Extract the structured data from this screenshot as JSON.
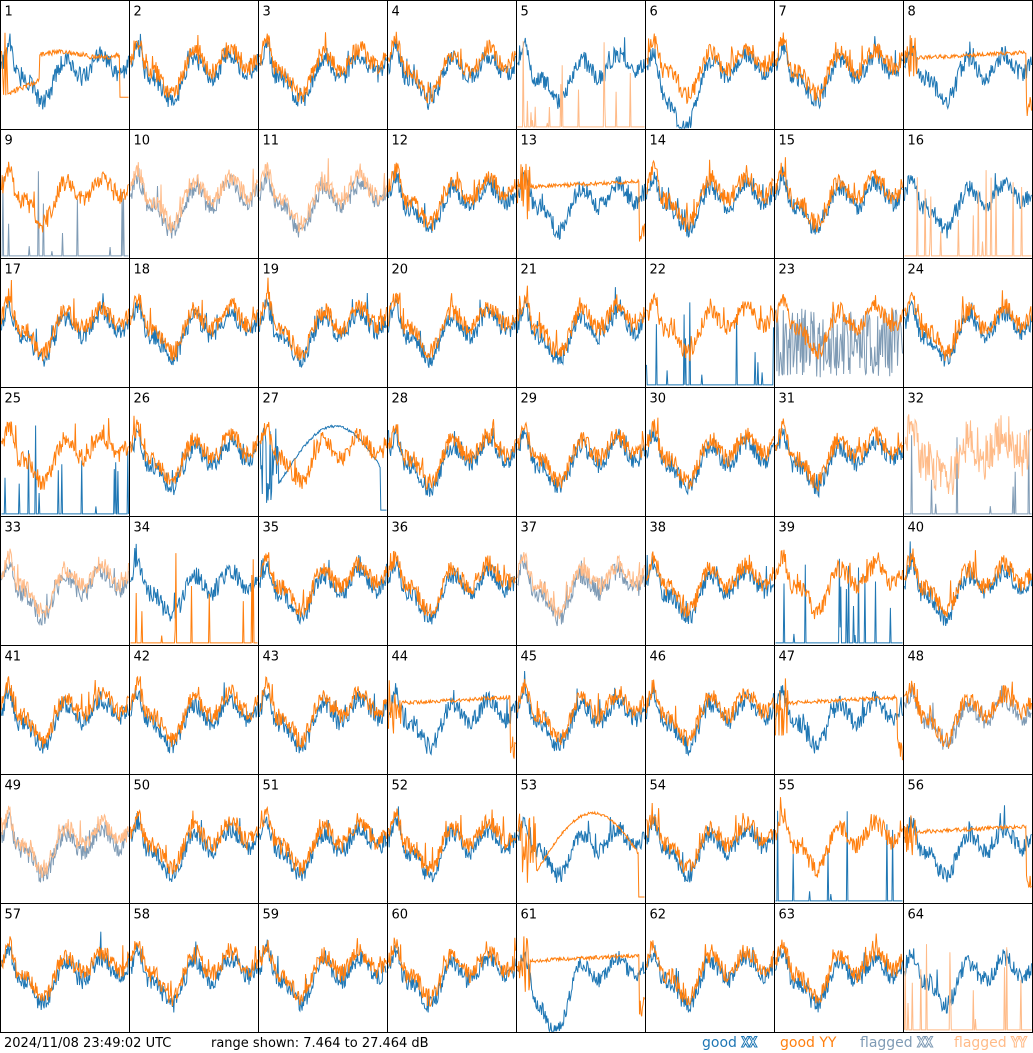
{
  "footer": {
    "timestamp": "2024/11/08 23:49:02 UTC",
    "range_text": "range shown: 7.464 to 27.464 dB",
    "legend": {
      "good_prefix": "good",
      "flagged_prefix": "flagged",
      "xx": "XX",
      "yy": "YY"
    }
  },
  "colors": {
    "good_xx": "#1f77b4",
    "good_yy": "#ff7f0e",
    "flagged_xx": "#7f9bb5",
    "flagged_yy": "#ffbb88",
    "frame": "#000000"
  },
  "chart_data": {
    "type": "line",
    "grid": {
      "rows": 8,
      "cols": 8
    },
    "ylim": [
      7.464,
      27.464
    ],
    "yunit": "dB",
    "panels": [
      {
        "label": "1",
        "xx": "good",
        "yy": "good",
        "xx_kind": "typical",
        "yy_kind": "sat_low"
      },
      {
        "label": "2",
        "xx": "good",
        "yy": "good",
        "xx_kind": "typical",
        "yy_kind": "typical"
      },
      {
        "label": "3",
        "xx": "good",
        "yy": "good",
        "xx_kind": "typical",
        "yy_kind": "typical"
      },
      {
        "label": "4",
        "xx": "good",
        "yy": "good",
        "xx_kind": "typical",
        "yy_kind": "typical"
      },
      {
        "label": "5",
        "xx": "good",
        "yy": "flagged",
        "xx_kind": "typical",
        "yy_kind": "spikes"
      },
      {
        "label": "6",
        "xx": "good",
        "yy": "good",
        "xx_kind": "low_dip",
        "yy_kind": "typical"
      },
      {
        "label": "7",
        "xx": "good",
        "yy": "good",
        "xx_kind": "typical",
        "yy_kind": "typical"
      },
      {
        "label": "8",
        "xx": "good",
        "yy": "good",
        "xx_kind": "typical",
        "yy_kind": "flat_mid"
      },
      {
        "label": "9",
        "xx": "flagged",
        "yy": "good",
        "xx_kind": "spikes",
        "yy_kind": "typical"
      },
      {
        "label": "10",
        "xx": "flagged",
        "yy": "flagged",
        "xx_kind": "typical",
        "yy_kind": "typical"
      },
      {
        "label": "11",
        "xx": "flagged",
        "yy": "flagged",
        "xx_kind": "typical",
        "yy_kind": "typical"
      },
      {
        "label": "12",
        "xx": "good",
        "yy": "good",
        "xx_kind": "typical",
        "yy_kind": "typical"
      },
      {
        "label": "13",
        "xx": "good",
        "yy": "good",
        "xx_kind": "typical",
        "yy_kind": "flat_mid"
      },
      {
        "label": "14",
        "xx": "good",
        "yy": "good",
        "xx_kind": "typical",
        "yy_kind": "typical"
      },
      {
        "label": "15",
        "xx": "good",
        "yy": "good",
        "xx_kind": "typical",
        "yy_kind": "typical"
      },
      {
        "label": "16",
        "xx": "good",
        "yy": "flagged",
        "xx_kind": "typical",
        "yy_kind": "spikes"
      },
      {
        "label": "17",
        "xx": "good",
        "yy": "good",
        "xx_kind": "typical",
        "yy_kind": "typical"
      },
      {
        "label": "18",
        "xx": "good",
        "yy": "good",
        "xx_kind": "typical",
        "yy_kind": "typical"
      },
      {
        "label": "19",
        "xx": "good",
        "yy": "good",
        "xx_kind": "typical",
        "yy_kind": "typical"
      },
      {
        "label": "20",
        "xx": "good",
        "yy": "good",
        "xx_kind": "typical",
        "yy_kind": "typical"
      },
      {
        "label": "21",
        "xx": "good",
        "yy": "good",
        "xx_kind": "typical",
        "yy_kind": "typical"
      },
      {
        "label": "22",
        "xx": "good",
        "yy": "good",
        "xx_kind": "spikes",
        "yy_kind": "typical"
      },
      {
        "label": "23",
        "xx": "flagged",
        "yy": "good",
        "xx_kind": "noisy_low",
        "yy_kind": "typical"
      },
      {
        "label": "24",
        "xx": "good",
        "yy": "good",
        "xx_kind": "typical",
        "yy_kind": "typical"
      },
      {
        "label": "25",
        "xx": "good",
        "yy": "good",
        "xx_kind": "spikes",
        "yy_kind": "typical"
      },
      {
        "label": "26",
        "xx": "good",
        "yy": "good",
        "xx_kind": "typical",
        "yy_kind": "typical"
      },
      {
        "label": "27",
        "xx": "good",
        "yy": "good",
        "xx_kind": "sat_arc",
        "yy_kind": "typical"
      },
      {
        "label": "28",
        "xx": "good",
        "yy": "good",
        "xx_kind": "typical",
        "yy_kind": "typical"
      },
      {
        "label": "29",
        "xx": "good",
        "yy": "good",
        "xx_kind": "typical",
        "yy_kind": "typical"
      },
      {
        "label": "30",
        "xx": "good",
        "yy": "good",
        "xx_kind": "typical",
        "yy_kind": "typical"
      },
      {
        "label": "31",
        "xx": "good",
        "yy": "good",
        "xx_kind": "typical",
        "yy_kind": "typical"
      },
      {
        "label": "32",
        "xx": "flagged",
        "yy": "flagged",
        "xx_kind": "spikes",
        "yy_kind": "wide"
      },
      {
        "label": "33",
        "xx": "flagged",
        "yy": "flagged",
        "xx_kind": "typical",
        "yy_kind": "typical"
      },
      {
        "label": "34",
        "xx": "good",
        "yy": "good",
        "xx_kind": "typical",
        "yy_kind": "spikes"
      },
      {
        "label": "35",
        "xx": "good",
        "yy": "good",
        "xx_kind": "typical",
        "yy_kind": "typical"
      },
      {
        "label": "36",
        "xx": "good",
        "yy": "good",
        "xx_kind": "typical",
        "yy_kind": "typical"
      },
      {
        "label": "37",
        "xx": "flagged",
        "yy": "flagged",
        "xx_kind": "typical",
        "yy_kind": "typical"
      },
      {
        "label": "38",
        "xx": "good",
        "yy": "good",
        "xx_kind": "typical",
        "yy_kind": "typical"
      },
      {
        "label": "39",
        "xx": "good",
        "yy": "good",
        "xx_kind": "spikes",
        "yy_kind": "typical"
      },
      {
        "label": "40",
        "xx": "good",
        "yy": "good",
        "xx_kind": "typical",
        "yy_kind": "typical"
      },
      {
        "label": "41",
        "xx": "good",
        "yy": "good",
        "xx_kind": "typical",
        "yy_kind": "typical"
      },
      {
        "label": "42",
        "xx": "good",
        "yy": "good",
        "xx_kind": "typical",
        "yy_kind": "typical"
      },
      {
        "label": "43",
        "xx": "good",
        "yy": "good",
        "xx_kind": "typical",
        "yy_kind": "typical"
      },
      {
        "label": "44",
        "xx": "good",
        "yy": "good",
        "xx_kind": "typical",
        "yy_kind": "flat_mid"
      },
      {
        "label": "45",
        "xx": "good",
        "yy": "good",
        "xx_kind": "typical",
        "yy_kind": "typical"
      },
      {
        "label": "46",
        "xx": "good",
        "yy": "good",
        "xx_kind": "typical",
        "yy_kind": "typical"
      },
      {
        "label": "47",
        "xx": "good",
        "yy": "good",
        "xx_kind": "typical",
        "yy_kind": "flat_mid"
      },
      {
        "label": "48",
        "xx": "flagged",
        "yy": "good",
        "xx_kind": "typical",
        "yy_kind": "typical"
      },
      {
        "label": "49",
        "xx": "flagged",
        "yy": "flagged",
        "xx_kind": "typical",
        "yy_kind": "typical"
      },
      {
        "label": "50",
        "xx": "good",
        "yy": "good",
        "xx_kind": "typical",
        "yy_kind": "typical"
      },
      {
        "label": "51",
        "xx": "good",
        "yy": "good",
        "xx_kind": "typical",
        "yy_kind": "typical"
      },
      {
        "label": "52",
        "xx": "good",
        "yy": "good",
        "xx_kind": "typical",
        "yy_kind": "typical"
      },
      {
        "label": "53",
        "xx": "good",
        "yy": "good",
        "xx_kind": "typical",
        "yy_kind": "sat_arc"
      },
      {
        "label": "54",
        "xx": "good",
        "yy": "good",
        "xx_kind": "typical",
        "yy_kind": "typical"
      },
      {
        "label": "55",
        "xx": "good",
        "yy": "good",
        "xx_kind": "spikes",
        "yy_kind": "typical"
      },
      {
        "label": "56",
        "xx": "good",
        "yy": "good",
        "xx_kind": "typical",
        "yy_kind": "flat_mid"
      },
      {
        "label": "57",
        "xx": "good",
        "yy": "good",
        "xx_kind": "typical",
        "yy_kind": "typical"
      },
      {
        "label": "58",
        "xx": "good",
        "yy": "good",
        "xx_kind": "typical",
        "yy_kind": "typical"
      },
      {
        "label": "59",
        "xx": "good",
        "yy": "good",
        "xx_kind": "typical",
        "yy_kind": "typical"
      },
      {
        "label": "60",
        "xx": "good",
        "yy": "good",
        "xx_kind": "typical",
        "yy_kind": "typical"
      },
      {
        "label": "61",
        "xx": "good",
        "yy": "good",
        "xx_kind": "low_dip",
        "yy_kind": "flat_mid"
      },
      {
        "label": "62",
        "xx": "good",
        "yy": "good",
        "xx_kind": "typical",
        "yy_kind": "typical"
      },
      {
        "label": "63",
        "xx": "good",
        "yy": "good",
        "xx_kind": "typical",
        "yy_kind": "typical"
      },
      {
        "label": "64",
        "xx": "good",
        "yy": "flagged",
        "xx_kind": "typical",
        "yy_kind": "spikes"
      }
    ]
  }
}
